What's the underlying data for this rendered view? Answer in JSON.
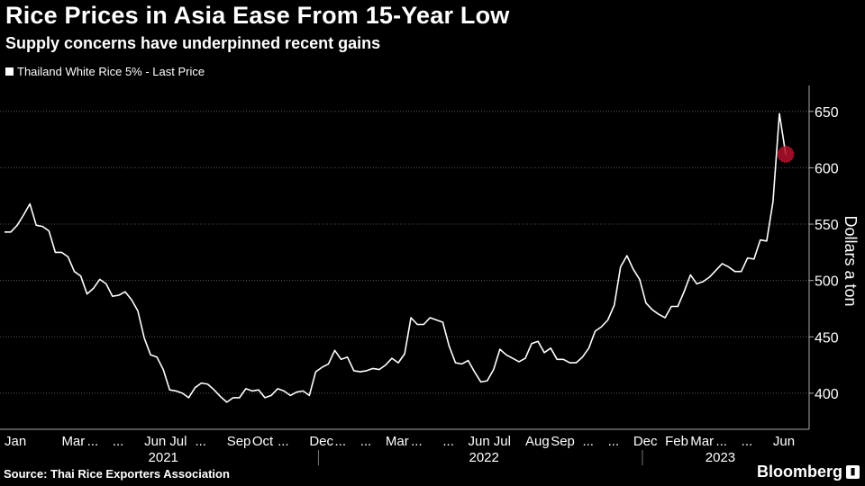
{
  "header": {
    "title": "Rice Prices in Asia Ease From 15-Year Low",
    "subtitle": "Supply concerns have underpinned recent gains"
  },
  "legend": {
    "label": "Thailand White Rice 5% - Last Price"
  },
  "footer": {
    "source": "Source: Thai Rice Exporters Association",
    "brand": "Bloomberg"
  },
  "colors": {
    "background": "#000000",
    "line": "#ffffff",
    "grid": "#555555",
    "marker": "#b3102a"
  },
  "chart_data": {
    "type": "line",
    "title": "Rice Prices in Asia Ease From 15-Year Low",
    "subtitle": "Supply concerns have underpinned recent gains",
    "ylabel": "Dollars a ton",
    "ylim": [
      368,
      673
    ],
    "yticks": [
      400,
      450,
      500,
      550,
      600,
      650
    ],
    "grid": true,
    "legend_position": "top-left",
    "x_month_labels": [
      {
        "label": "Jan",
        "index": 0
      },
      {
        "label": "Mar",
        "index": 9
      },
      {
        "label": "...",
        "index": 13
      },
      {
        "label": "...",
        "index": 17
      },
      {
        "label": "Jun",
        "index": 22
      },
      {
        "label": "Jul",
        "index": 26
      },
      {
        "label": "...",
        "index": 30
      },
      {
        "label": "Sep",
        "index": 35
      },
      {
        "label": "Oct",
        "index": 39
      },
      {
        "label": "...",
        "index": 43
      },
      {
        "label": "Dec",
        "index": 48
      },
      {
        "label": "...",
        "index": 52
      },
      {
        "label": "...",
        "index": 56
      },
      {
        "label": "Mar",
        "index": 60
      },
      {
        "label": "...",
        "index": 64
      },
      {
        "label": "...",
        "index": 69
      },
      {
        "label": "Jun",
        "index": 73
      },
      {
        "label": "Jul",
        "index": 77
      },
      {
        "label": "Aug",
        "index": 82
      },
      {
        "label": "Sep",
        "index": 86
      },
      {
        "label": "...",
        "index": 91
      },
      {
        "label": "...",
        "index": 95
      },
      {
        "label": "Dec",
        "index": 99
      },
      {
        "label": "Feb",
        "index": 104
      },
      {
        "label": "Mar",
        "index": 108
      },
      {
        "label": "...",
        "index": 112
      },
      {
        "label": "...",
        "index": 116
      },
      {
        "label": "Jun",
        "index": 121
      }
    ],
    "x_year_labels": [
      {
        "label": "2021",
        "start": 0,
        "end": 50
      },
      {
        "label": "2022",
        "start": 50,
        "end": 101
      },
      {
        "label": "2023",
        "start": 101,
        "end": 128
      }
    ],
    "series": [
      {
        "name": "Thailand White Rice 5% - Last Price",
        "values": [
          543,
          543,
          549,
          558,
          568,
          549,
          548,
          544,
          525,
          525,
          521,
          508,
          504,
          488,
          493,
          501,
          497,
          486,
          487,
          490,
          483,
          473,
          449,
          434,
          432,
          421,
          403,
          402,
          400,
          396,
          405,
          409,
          408,
          403,
          397,
          392,
          396,
          396,
          404,
          402,
          403,
          396,
          398,
          404,
          402,
          398,
          401,
          402,
          398,
          419,
          423,
          426,
          438,
          430,
          432,
          420,
          419,
          420,
          422,
          421,
          425,
          431,
          427,
          435,
          467,
          461,
          461,
          467,
          465,
          463,
          442,
          427,
          426,
          429,
          419,
          410,
          411,
          421,
          439,
          434,
          431,
          428,
          431,
          444,
          446,
          436,
          440,
          430,
          430,
          427,
          427,
          432,
          440,
          455,
          459,
          465,
          478,
          512,
          522,
          510,
          501,
          480,
          474,
          470,
          467,
          477,
          477,
          490,
          505,
          497,
          499,
          503,
          509,
          515,
          512,
          508,
          508,
          520,
          519,
          536,
          535,
          570,
          648,
          612
        ]
      }
    ],
    "highlight": {
      "index": 123,
      "value": 612
    }
  }
}
